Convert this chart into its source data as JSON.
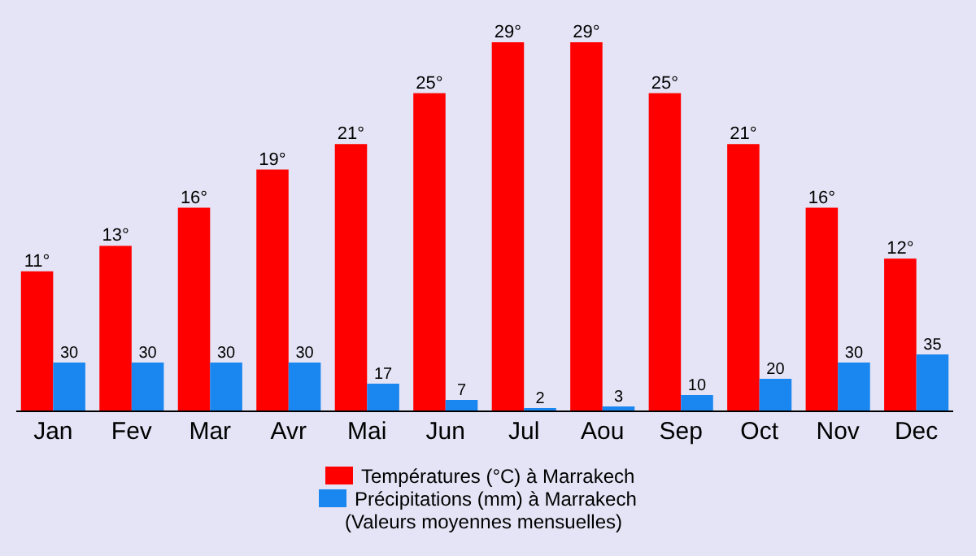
{
  "chart_data": {
    "type": "bar",
    "categories": [
      "Jan",
      "Fev",
      "Mar",
      "Avr",
      "Mai",
      "Jun",
      "Jul",
      "Aou",
      "Sep",
      "Oct",
      "Nov",
      "Dec"
    ],
    "series": [
      {
        "name": "Températures (°C) à Marrakech",
        "color": "#ff0000",
        "values": [
          11,
          13,
          16,
          19,
          21,
          25,
          29,
          29,
          25,
          21,
          16,
          12
        ],
        "value_labels": [
          "11°",
          "13°",
          "16°",
          "19°",
          "21°",
          "25°",
          "29°",
          "29°",
          "25°",
          "21°",
          "16°",
          "12°"
        ]
      },
      {
        "name": "Précipitations (mm) à Marrakech",
        "color": "#1a86f0",
        "axis": "y2",
        "values": [
          30,
          30,
          30,
          30,
          17,
          7,
          2,
          3,
          10,
          20,
          30,
          35
        ],
        "value_labels": [
          "30",
          "30",
          "30",
          "30",
          "17",
          "7",
          "2",
          "3",
          "10",
          "20",
          "30",
          "35"
        ]
      }
    ],
    "ylim": [
      0,
      29
    ],
    "y2lim": [
      0,
      227
    ],
    "tick_labels": "x",
    "legend": "bottom",
    "annotations": [
      "(Valeurs moyennes mensuelles)"
    ]
  }
}
